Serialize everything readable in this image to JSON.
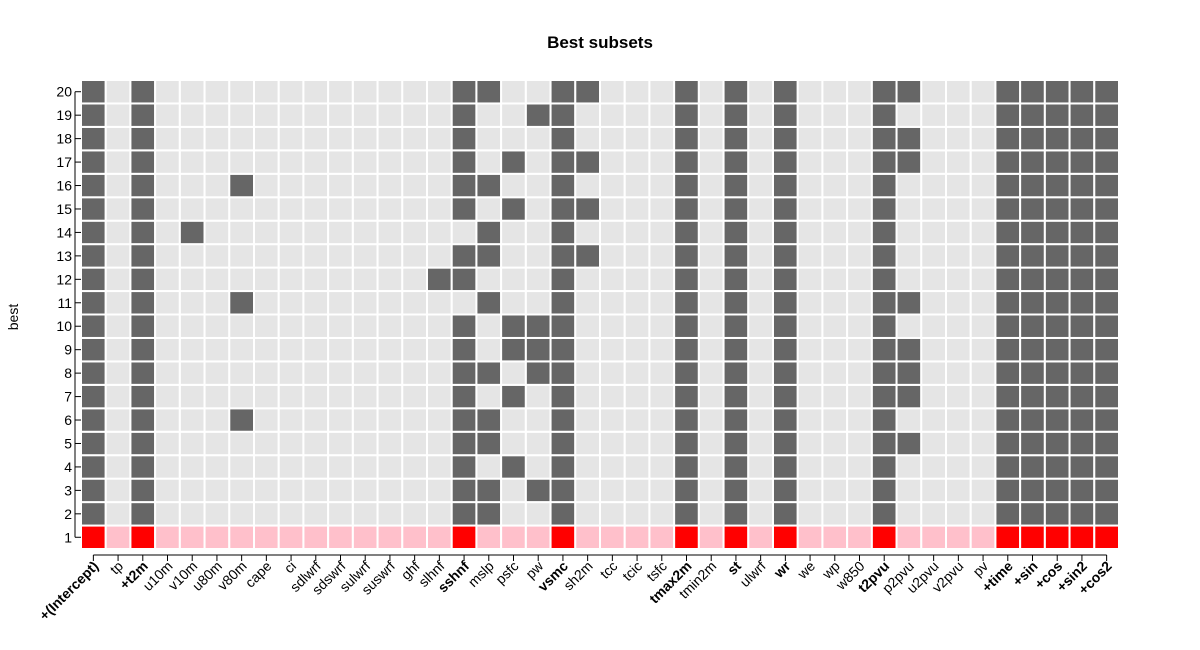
{
  "chart_data": {
    "type": "heatmap",
    "title": "Best subsets",
    "xlabel": "",
    "ylabel": "best",
    "x_labels": [
      "+(Intercept)",
      "tp",
      "+t2m",
      "u10m",
      "v10m",
      "u80m",
      "v80m",
      "cape",
      "ci",
      "sdlwrf",
      "sdswrf",
      "sulwrf",
      "suswrf",
      "ghf",
      "slhnf",
      "sshnf",
      "mslp",
      "psfc",
      "pw",
      "vsmc",
      "sh2m",
      "tcc",
      "tcic",
      "tsfc",
      "tmax2m",
      "tmin2m",
      "st",
      "ulwrf",
      "wr",
      "we",
      "wp",
      "w850",
      "t2pvu",
      "p2pvu",
      "u2pvu",
      "v2pvu",
      "pv",
      "+time",
      "+sin",
      "+cos",
      "+sin2",
      "+cos2"
    ],
    "bold_x_labels": [
      "+(Intercept)",
      "+t2m",
      "sshnf",
      "vsmc",
      "tmax2m",
      "st",
      "wr",
      "t2pvu",
      "+time",
      "+sin",
      "+cos",
      "+sin2",
      "+cos2"
    ],
    "y_labels": [
      "1",
      "2",
      "3",
      "4",
      "5",
      "6",
      "7",
      "8",
      "9",
      "10",
      "11",
      "12",
      "13",
      "14",
      "15",
      "16",
      "17",
      "18",
      "19",
      "20"
    ],
    "selected_by_rank": {
      "1": [
        "+(Intercept)",
        "+t2m",
        "sshnf",
        "vsmc",
        "tmax2m",
        "st",
        "wr",
        "t2pvu",
        "+time",
        "+sin",
        "+cos",
        "+sin2",
        "+cos2"
      ],
      "2": [
        "+(Intercept)",
        "+t2m",
        "sshnf",
        "mslp",
        "vsmc",
        "tmax2m",
        "st",
        "wr",
        "t2pvu",
        "+time",
        "+sin",
        "+cos",
        "+sin2",
        "+cos2"
      ],
      "3": [
        "+(Intercept)",
        "+t2m",
        "sshnf",
        "mslp",
        "pw",
        "vsmc",
        "tmax2m",
        "st",
        "wr",
        "t2pvu",
        "+time",
        "+sin",
        "+cos",
        "+sin2",
        "+cos2"
      ],
      "4": [
        "+(Intercept)",
        "+t2m",
        "sshnf",
        "psfc",
        "vsmc",
        "tmax2m",
        "st",
        "wr",
        "t2pvu",
        "+time",
        "+sin",
        "+cos",
        "+sin2",
        "+cos2"
      ],
      "5": [
        "+(Intercept)",
        "+t2m",
        "sshnf",
        "mslp",
        "vsmc",
        "tmax2m",
        "st",
        "wr",
        "t2pvu",
        "p2pvu",
        "+time",
        "+sin",
        "+cos",
        "+sin2",
        "+cos2"
      ],
      "6": [
        "+(Intercept)",
        "+t2m",
        "v80m",
        "sshnf",
        "mslp",
        "vsmc",
        "tmax2m",
        "st",
        "wr",
        "t2pvu",
        "+time",
        "+sin",
        "+cos",
        "+sin2",
        "+cos2"
      ],
      "7": [
        "+(Intercept)",
        "+t2m",
        "sshnf",
        "psfc",
        "vsmc",
        "tmax2m",
        "st",
        "wr",
        "t2pvu",
        "p2pvu",
        "+time",
        "+sin",
        "+cos",
        "+sin2",
        "+cos2"
      ],
      "8": [
        "+(Intercept)",
        "+t2m",
        "sshnf",
        "mslp",
        "pw",
        "vsmc",
        "tmax2m",
        "st",
        "wr",
        "t2pvu",
        "p2pvu",
        "+time",
        "+sin",
        "+cos",
        "+sin2",
        "+cos2"
      ],
      "9": [
        "+(Intercept)",
        "+t2m",
        "sshnf",
        "psfc",
        "pw",
        "vsmc",
        "tmax2m",
        "st",
        "wr",
        "t2pvu",
        "p2pvu",
        "+time",
        "+sin",
        "+cos",
        "+sin2",
        "+cos2"
      ],
      "10": [
        "+(Intercept)",
        "+t2m",
        "sshnf",
        "psfc",
        "pw",
        "vsmc",
        "tmax2m",
        "st",
        "wr",
        "t2pvu",
        "+time",
        "+sin",
        "+cos",
        "+sin2",
        "+cos2"
      ],
      "11": [
        "+(Intercept)",
        "+t2m",
        "v80m",
        "mslp",
        "vsmc",
        "tmax2m",
        "st",
        "wr",
        "t2pvu",
        "p2pvu",
        "+time",
        "+sin",
        "+cos",
        "+sin2",
        "+cos2"
      ],
      "12": [
        "+(Intercept)",
        "+t2m",
        "slhnf",
        "sshnf",
        "vsmc",
        "tmax2m",
        "st",
        "wr",
        "t2pvu",
        "+time",
        "+sin",
        "+cos",
        "+sin2",
        "+cos2"
      ],
      "13": [
        "+(Intercept)",
        "+t2m",
        "sshnf",
        "mslp",
        "vsmc",
        "sh2m",
        "tmax2m",
        "st",
        "wr",
        "t2pvu",
        "+time",
        "+sin",
        "+cos",
        "+sin2",
        "+cos2"
      ],
      "14": [
        "+(Intercept)",
        "+t2m",
        "v10m",
        "mslp",
        "vsmc",
        "tmax2m",
        "st",
        "wr",
        "t2pvu",
        "+time",
        "+sin",
        "+cos",
        "+sin2",
        "+cos2"
      ],
      "15": [
        "+(Intercept)",
        "+t2m",
        "sshnf",
        "psfc",
        "vsmc",
        "sh2m",
        "tmax2m",
        "st",
        "wr",
        "t2pvu",
        "+time",
        "+sin",
        "+cos",
        "+sin2",
        "+cos2"
      ],
      "16": [
        "+(Intercept)",
        "+t2m",
        "v80m",
        "sshnf",
        "mslp",
        "vsmc",
        "tmax2m",
        "st",
        "wr",
        "t2pvu",
        "+time",
        "+sin",
        "+cos",
        "+sin2",
        "+cos2"
      ],
      "17": [
        "+(Intercept)",
        "+t2m",
        "sshnf",
        "psfc",
        "vsmc",
        "sh2m",
        "tmax2m",
        "st",
        "wr",
        "t2pvu",
        "p2pvu",
        "+time",
        "+sin",
        "+cos",
        "+sin2",
        "+cos2"
      ],
      "18": [
        "+(Intercept)",
        "+t2m",
        "sshnf",
        "vsmc",
        "tmax2m",
        "st",
        "wr",
        "t2pvu",
        "p2pvu",
        "+time",
        "+sin",
        "+cos",
        "+sin2",
        "+cos2"
      ],
      "19": [
        "+(Intercept)",
        "+t2m",
        "sshnf",
        "pw",
        "vsmc",
        "tmax2m",
        "st",
        "wr",
        "t2pvu",
        "+time",
        "+sin",
        "+cos",
        "+sin2",
        "+cos2"
      ],
      "20": [
        "+(Intercept)",
        "+t2m",
        "sshnf",
        "mslp",
        "vsmc",
        "sh2m",
        "tmax2m",
        "st",
        "wr",
        "t2pvu",
        "p2pvu",
        "+time",
        "+sin",
        "+cos",
        "+sin2",
        "+cos2"
      ]
    },
    "grid": false,
    "legend": "none"
  },
  "colors": {
    "selected": "#666666",
    "unselected": "#e5e5e5",
    "best_selected": "#ff0000",
    "best_unselected": "#ffc0cb"
  }
}
